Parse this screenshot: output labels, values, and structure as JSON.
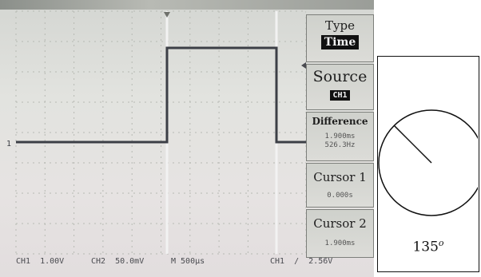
{
  "scope": {
    "menu": {
      "type_label": "Type",
      "type_value": "Time",
      "source_label": "Source",
      "source_value": "CH1",
      "difference_label": "Difference",
      "difference_time": "1.900ms",
      "difference_freq": "526.3Hz",
      "cursor1_label": "Cursor 1",
      "cursor1_value": "0.000s",
      "cursor2_label": "Cursor 2",
      "cursor2_value": "1.900ms"
    },
    "status": {
      "ch1_scale": "CH1  1.00V",
      "ch2_scale": "CH2  50.0mV",
      "timebase": "M 500µs",
      "trigger": "CH1  /  2.56V"
    },
    "channel_marker": "1"
  },
  "gauge": {
    "angle_value": "135",
    "angle_unit": "o",
    "needle_angle_deg": 135
  },
  "colors": {
    "trace": "#3c3f46",
    "cursor": "#f2f2f2",
    "grid": "#b7bab3"
  }
}
